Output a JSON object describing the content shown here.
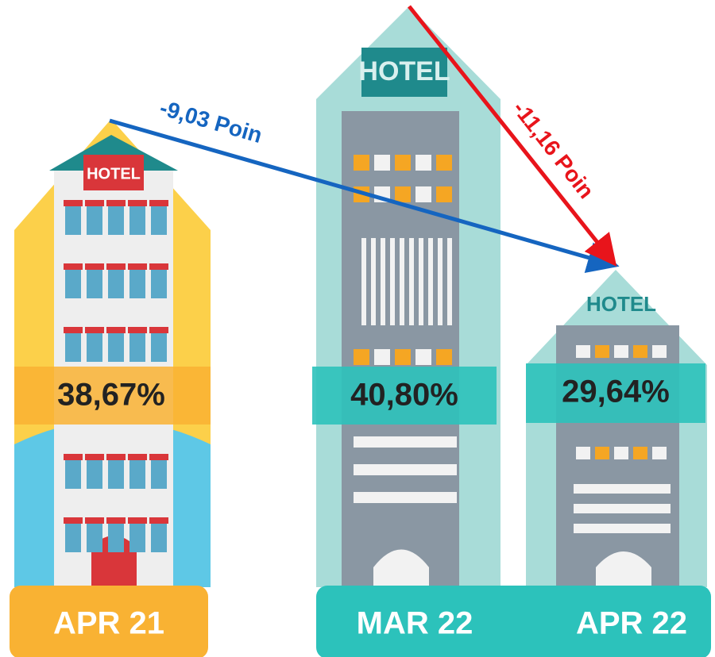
{
  "panels": [
    {
      "label": "APR 21",
      "value": "38,67%"
    },
    {
      "label": "MAR 22",
      "value": "40,80%"
    },
    {
      "label": "APR 22",
      "value": "29,64%"
    }
  ],
  "annotations": [
    {
      "text": "-9,03 Poin"
    },
    {
      "text": "-11,16 Poin"
    }
  ]
}
